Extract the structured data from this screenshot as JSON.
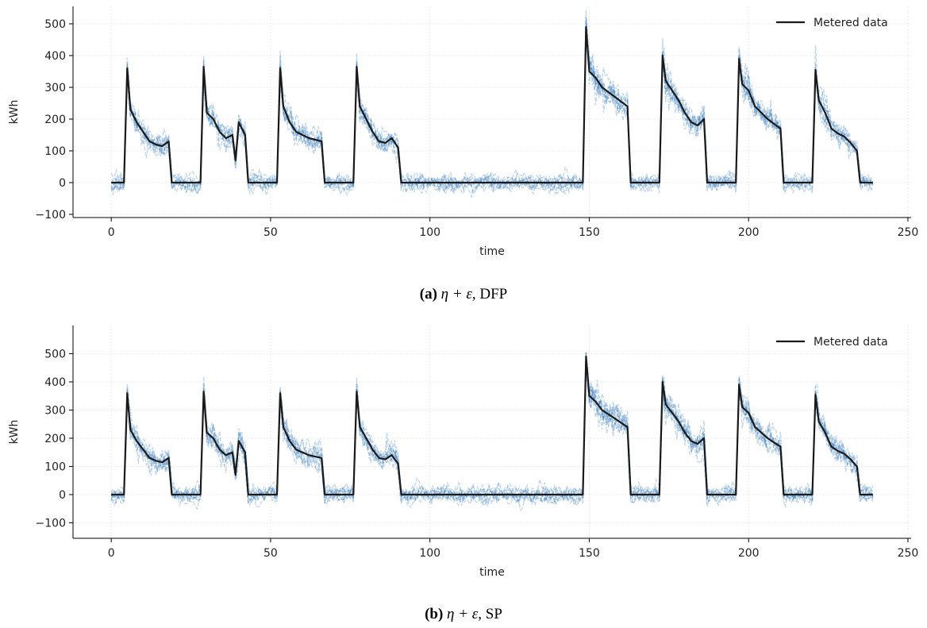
{
  "chart_data": [
    {
      "type": "line",
      "xlabel": "time",
      "ylabel": "kWh",
      "xlim": [
        -12,
        251
      ],
      "ylim": [
        -110,
        555
      ],
      "xticks": [
        0,
        50,
        100,
        150,
        200,
        250
      ],
      "yticks": [
        -100,
        0,
        100,
        200,
        300,
        400,
        500
      ],
      "grid": true,
      "legend_position": "top-right",
      "caption_tag": "(a)",
      "caption_expr": "η + ε",
      "caption_method": ", DFP",
      "series": [
        {
          "name": "Metered data",
          "color": "#1a1a1a",
          "x": [
            0,
            4,
            5,
            6,
            8,
            10,
            12,
            14,
            16,
            18,
            19,
            24,
            28,
            29,
            30,
            32,
            34,
            36,
            38,
            39,
            40,
            42,
            43,
            52,
            53,
            54,
            56,
            58,
            60,
            62,
            64,
            66,
            67,
            76,
            77,
            78,
            80,
            82,
            84,
            86,
            88,
            90,
            91,
            148,
            149,
            150,
            152,
            154,
            156,
            158,
            160,
            162,
            163,
            172,
            173,
            174,
            176,
            178,
            180,
            182,
            184,
            186,
            187,
            196,
            197,
            198,
            200,
            202,
            204,
            206,
            208,
            210,
            211,
            220,
            221,
            222,
            224,
            226,
            228,
            230,
            232,
            234,
            235,
            239
          ],
          "y": [
            0,
            0,
            360,
            230,
            190,
            160,
            130,
            120,
            115,
            130,
            0,
            0,
            0,
            365,
            220,
            200,
            160,
            140,
            150,
            70,
            190,
            150,
            0,
            0,
            360,
            240,
            190,
            160,
            150,
            140,
            135,
            130,
            0,
            0,
            365,
            240,
            200,
            160,
            130,
            125,
            140,
            110,
            0,
            0,
            490,
            350,
            330,
            300,
            285,
            270,
            255,
            240,
            0,
            0,
            400,
            320,
            290,
            260,
            220,
            190,
            180,
            200,
            0,
            0,
            390,
            310,
            290,
            240,
            220,
            200,
            185,
            170,
            0,
            0,
            355,
            260,
            220,
            170,
            155,
            145,
            125,
            100,
            0,
            0
          ]
        },
        {
          "name": "Samples",
          "color": "#2c72b8",
          "sample_count": 10,
          "noise_sd": 28
        }
      ]
    },
    {
      "type": "line",
      "xlabel": "time",
      "ylabel": "kWh",
      "xlim": [
        -12,
        251
      ],
      "ylim": [
        -155,
        600
      ],
      "xticks": [
        0,
        50,
        100,
        150,
        200,
        250
      ],
      "yticks": [
        -100,
        0,
        100,
        200,
        300,
        400,
        500
      ],
      "grid": true,
      "legend_position": "top-right",
      "caption_tag": "(b)",
      "caption_expr": "η + ε",
      "caption_method": ", SP",
      "series": [
        {
          "name": "Metered data",
          "color": "#1a1a1a",
          "x": [
            0,
            4,
            5,
            6,
            8,
            10,
            12,
            14,
            16,
            18,
            19,
            24,
            28,
            29,
            30,
            32,
            34,
            36,
            38,
            39,
            40,
            42,
            43,
            52,
            53,
            54,
            56,
            58,
            60,
            62,
            64,
            66,
            67,
            76,
            77,
            78,
            80,
            82,
            84,
            86,
            88,
            90,
            91,
            148,
            149,
            150,
            152,
            154,
            156,
            158,
            160,
            162,
            163,
            172,
            173,
            174,
            176,
            178,
            180,
            182,
            184,
            186,
            187,
            196,
            197,
            198,
            200,
            202,
            204,
            206,
            208,
            210,
            211,
            220,
            221,
            222,
            224,
            226,
            228,
            230,
            232,
            234,
            235,
            239
          ],
          "y": [
            0,
            0,
            360,
            230,
            190,
            160,
            130,
            120,
            115,
            130,
            0,
            0,
            0,
            365,
            220,
            200,
            160,
            140,
            150,
            70,
            190,
            150,
            0,
            0,
            360,
            240,
            190,
            160,
            150,
            140,
            135,
            130,
            0,
            0,
            365,
            240,
            200,
            160,
            130,
            125,
            140,
            110,
            0,
            0,
            490,
            350,
            330,
            300,
            285,
            270,
            255,
            240,
            0,
            0,
            400,
            320,
            290,
            260,
            220,
            190,
            180,
            200,
            0,
            0,
            390,
            310,
            290,
            240,
            220,
            200,
            185,
            170,
            0,
            0,
            355,
            260,
            220,
            170,
            155,
            145,
            125,
            100,
            0,
            0
          ]
        },
        {
          "name": "Samples",
          "color": "#2c72b8",
          "sample_count": 10,
          "noise_sd": 34
        }
      ]
    }
  ]
}
